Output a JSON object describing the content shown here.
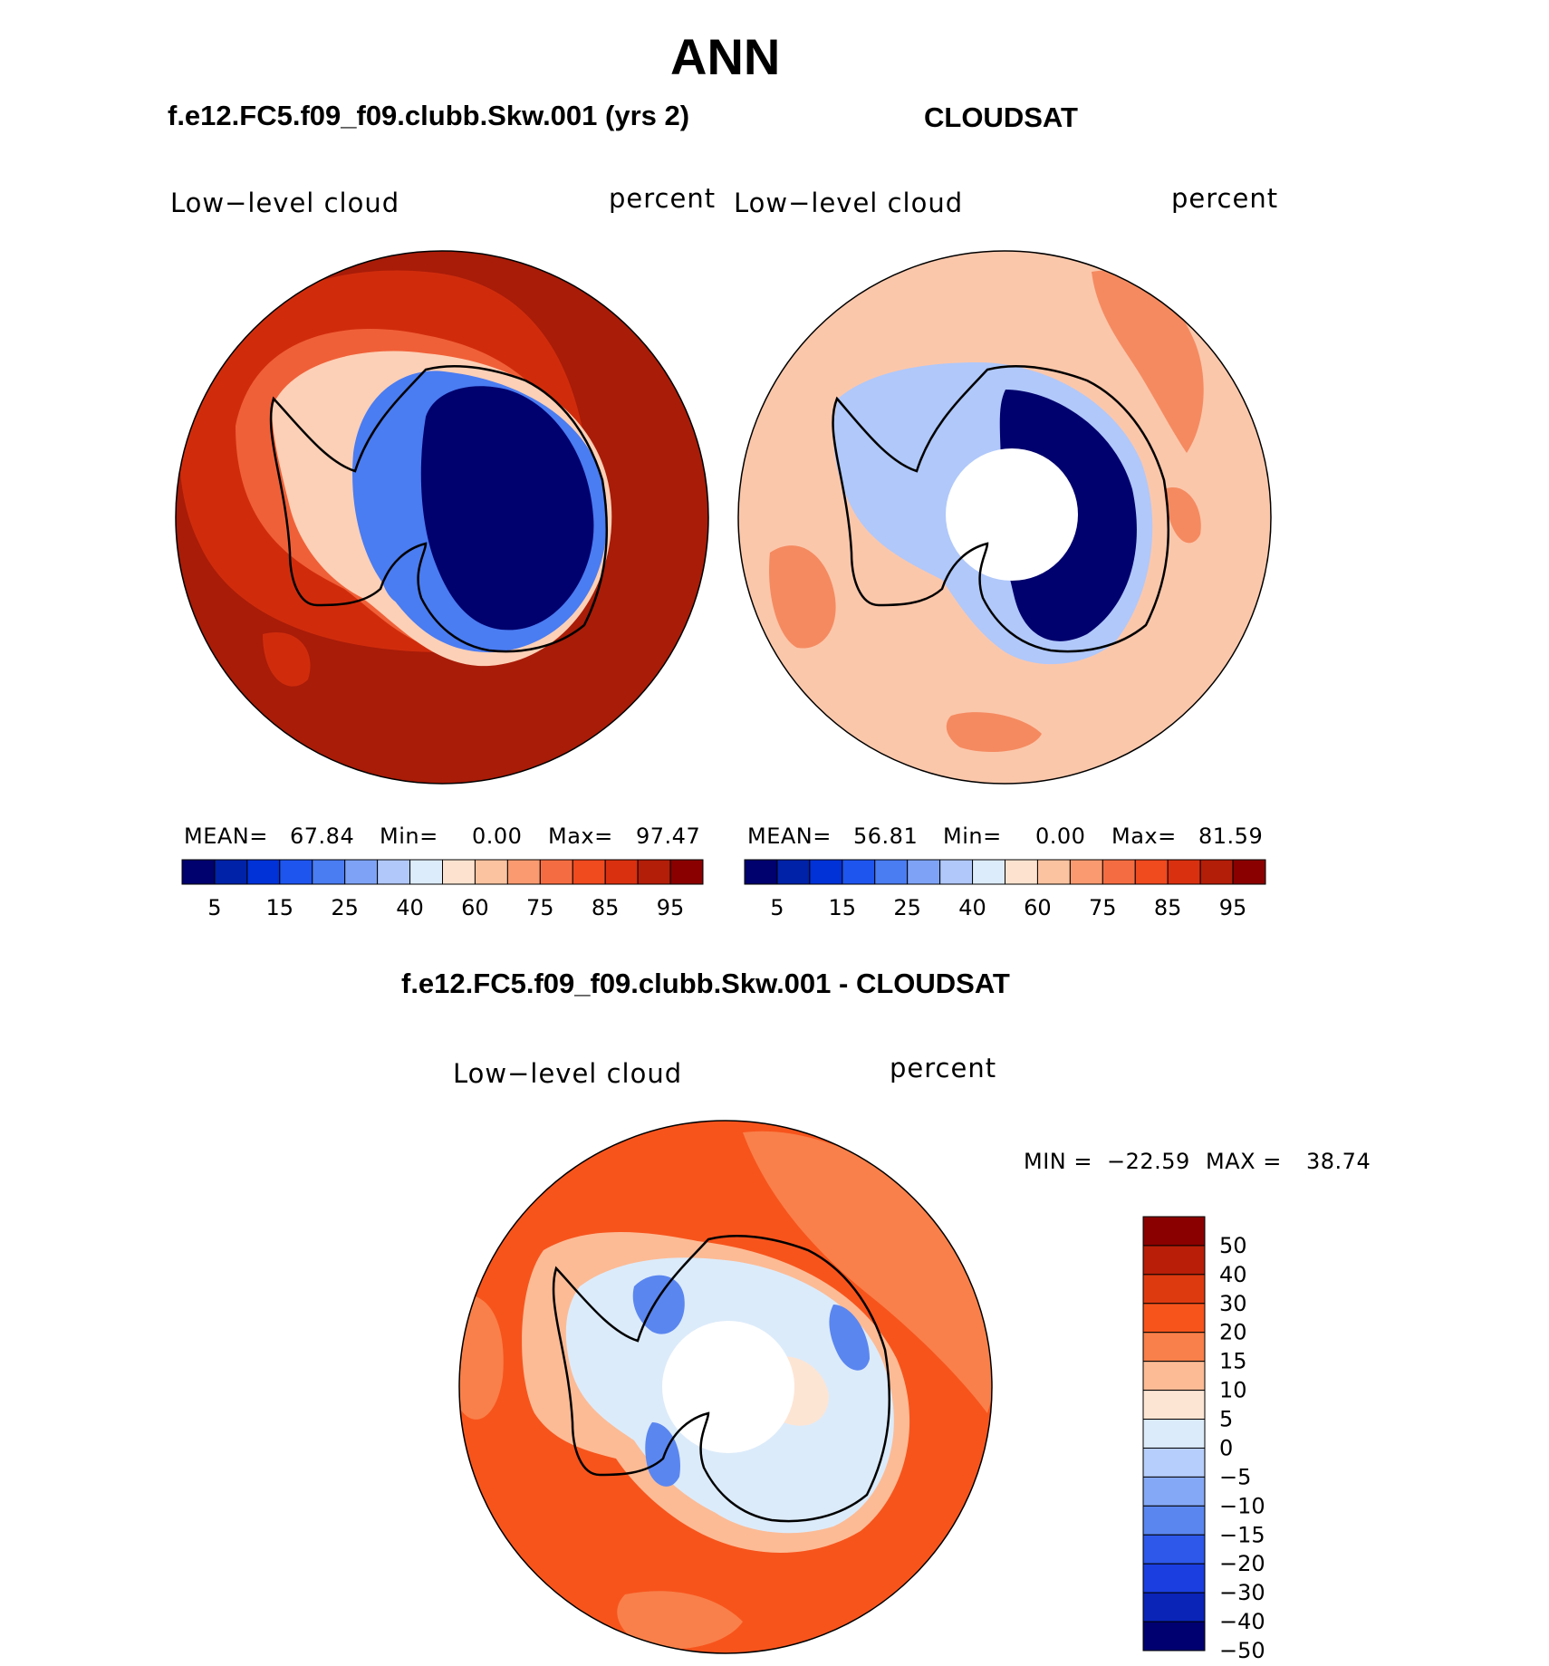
{
  "figure": {
    "title": "ANN",
    "panels": {
      "model": {
        "title": "f.e12.FC5.f09_f09.clubb.Skw.001 (yrs 2)",
        "variable": "Low−level cloud",
        "units": "percent",
        "stats": {
          "mean_label": "MEAN=",
          "mean": "67.84",
          "min_label": "Min=",
          "min": "0.00",
          "max_label": "Max=",
          "max": "97.47"
        }
      },
      "obs": {
        "title": "CLOUDSAT",
        "variable": "Low−level cloud",
        "units": "percent",
        "stats": {
          "mean_label": "MEAN=",
          "mean": "56.81",
          "min_label": "Min=",
          "min": "0.00",
          "max_label": "Max=",
          "max": "81.59"
        }
      },
      "diff": {
        "title": "f.e12.FC5.f09_f09.clubb.Skw.001 - CLOUDSAT",
        "variable": "Low−level cloud",
        "units": "percent",
        "stats": {
          "min_label": "MIN =",
          "min": "−22.59",
          "max_label": "MAX =",
          "max": "38.74"
        }
      }
    }
  },
  "colorbars": {
    "absolute": {
      "colors": [
        "#00006e",
        "#0022a8",
        "#0032d8",
        "#1e55ee",
        "#4a7cf2",
        "#7ea3f6",
        "#b0c8fa",
        "#dcecfb",
        "#fde3cf",
        "#fcc3a1",
        "#f99a70",
        "#f46d42",
        "#f04a1f",
        "#d93010",
        "#b31e08",
        "#8a0000"
      ],
      "tick_labels": [
        "5",
        "15",
        "25",
        "40",
        "60",
        "75",
        "85",
        "95"
      ]
    },
    "difference": {
      "colors": [
        "#8a0000",
        "#b81e08",
        "#de3a10",
        "#f7541c",
        "#f9804a",
        "#fcbb95",
        "#fde5d4",
        "#dcebfa",
        "#b6cefb",
        "#85a8f6",
        "#5a86f0",
        "#2d58ea",
        "#1a3ee0",
        "#0a24b8",
        "#000070"
      ],
      "tick_labels": [
        "50",
        "40",
        "30",
        "20",
        "15",
        "10",
        "5",
        "0",
        "−5",
        "−10",
        "−15",
        "−20",
        "−30",
        "−40",
        "−50"
      ]
    }
  },
  "map_colors": {
    "coast": "#000000",
    "model_ocean_far": "#a81c08",
    "model_ocean_mid": "#d02c0c",
    "model_ocean_near": "#f06038",
    "model_edge": "#fcd0b6",
    "model_ice_edge": "#4a7cf2",
    "model_ice_interior": "#00006e",
    "obs_ocean": "#fbc7ab",
    "obs_ocean_patch": "#f58a60",
    "obs_ice_edge": "#b0c8fa",
    "obs_ice_interior": "#00006e",
    "diff_ocean": "#f7541c",
    "diff_ocean_light": "#f9804a",
    "diff_coast_light": "#fcbb95",
    "diff_ice": "#dcebfa",
    "diff_ice_blue": "#5a86f0",
    "diff_ice_warm": "#fde5d4"
  }
}
